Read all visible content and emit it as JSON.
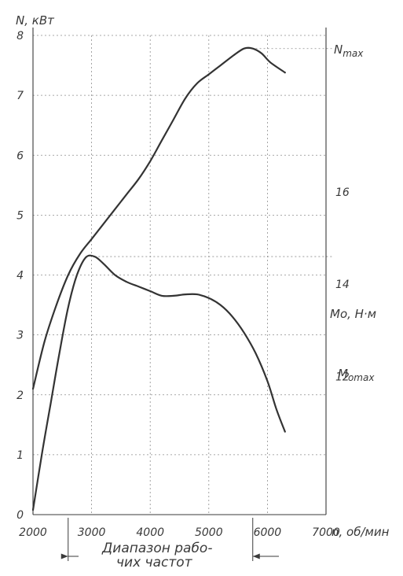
{
  "chart_data": {
    "type": "line",
    "xlabel": "n, об/мин",
    "ylabel_left": "N, кВт",
    "ylabel_right": "Mо, Н·м",
    "x_ticks": [
      2000,
      3000,
      4000,
      5000,
      6000,
      7000
    ],
    "y_left_ticks": [
      0,
      1,
      2,
      3,
      4,
      5,
      6,
      7,
      8
    ],
    "y_right_ticks": [
      12,
      14,
      16
    ],
    "xlim": [
      2000,
      7000
    ],
    "ylim_left": [
      0,
      8
    ],
    "ylim_right": [
      9,
      19.4
    ],
    "grid": true,
    "series": [
      {
        "name": "N",
        "axis": "left",
        "x": [
          2000,
          2200,
          2400,
          2600,
          2800,
          3000,
          3200,
          3400,
          3600,
          3800,
          4000,
          4200,
          4400,
          4600,
          4800,
          5000,
          5200,
          5400,
          5600,
          5750,
          5900,
          6050,
          6300
        ],
        "y": [
          2.1,
          2.9,
          3.5,
          4.0,
          4.35,
          4.6,
          4.85,
          5.1,
          5.35,
          5.6,
          5.9,
          6.25,
          6.6,
          6.95,
          7.2,
          7.35,
          7.5,
          7.65,
          7.78,
          7.78,
          7.7,
          7.55,
          7.38
        ]
      },
      {
        "name": "Mо",
        "axis": "right",
        "x": [
          2000,
          2150,
          2300,
          2450,
          2600,
          2750,
          2900,
          3050,
          3200,
          3400,
          3600,
          3800,
          4000,
          4200,
          4400,
          4600,
          4800,
          5000,
          5200,
          5400,
          5600,
          5800,
          6000,
          6150,
          6300
        ],
        "y": [
          9.1,
          10.3,
          11.4,
          12.5,
          13.5,
          14.2,
          14.58,
          14.6,
          14.45,
          14.2,
          14.05,
          13.95,
          13.85,
          13.75,
          13.75,
          13.78,
          13.78,
          13.7,
          13.55,
          13.3,
          12.95,
          12.5,
          11.9,
          11.3,
          10.8
        ]
      }
    ],
    "annotations": {
      "nmax_label": "Nmax",
      "mmax_label": "Mоmax",
      "range_label_line1": "Диапазон рабо-",
      "range_label_line2": "чих частот",
      "range_start": 2600,
      "range_end": 5750
    }
  }
}
